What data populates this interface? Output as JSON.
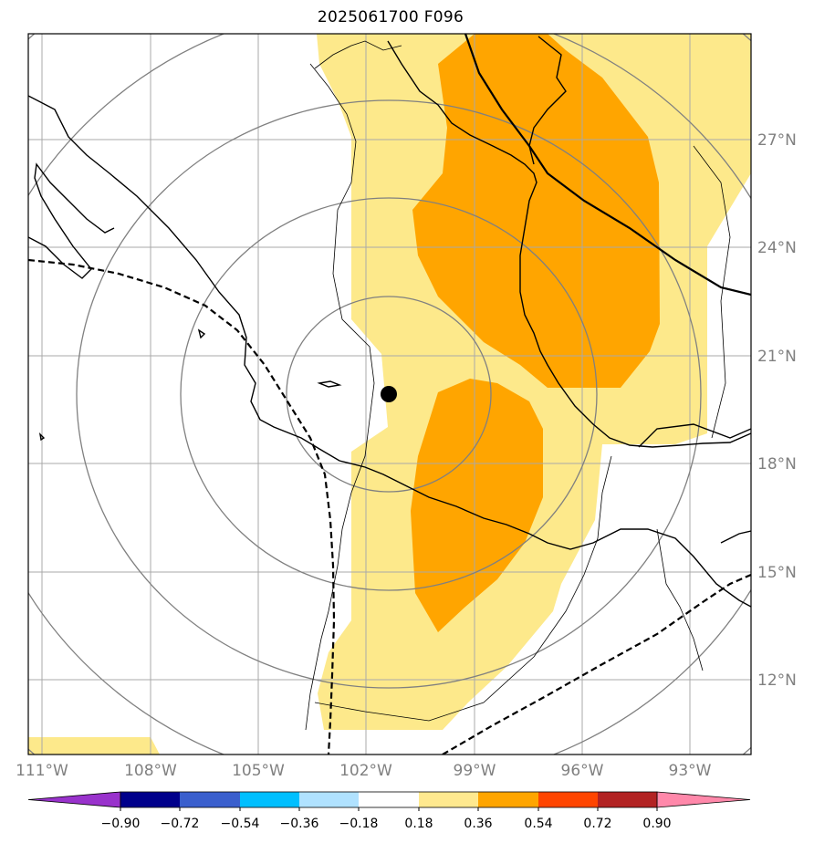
{
  "title": "2025061700 F096",
  "map": {
    "lon_range": [
      -111.3,
      -91.9
    ],
    "lat_range": [
      9.6,
      29.9
    ],
    "lon_ticks": [
      "111°W",
      "108°W",
      "105°W",
      "102°W",
      "99°W",
      "96°W",
      "93°W"
    ],
    "lat_ticks": [
      "12°N",
      "15°N",
      "18°N",
      "21°N",
      "24°N",
      "27°N"
    ],
    "gridline_color": "#a9a9a9",
    "tick_label_color": "#808080",
    "storm_center": {
      "lon": "101.3°W",
      "lat": "19.9°N",
      "marker": "black-dot"
    },
    "range_rings": {
      "count": 6,
      "color": "#808080",
      "center": "storm-center"
    },
    "track_lines": [
      {
        "style": "solid",
        "color": "#000000"
      },
      {
        "style": "dashed",
        "color": "#000000"
      },
      {
        "style": "dashed",
        "color": "#000000"
      }
    ]
  },
  "colorbar": {
    "ticks": [
      "−0.90",
      "−0.72",
      "−0.54",
      "−0.36",
      "−0.18",
      "0.18",
      "0.36",
      "0.54",
      "0.72",
      "0.90"
    ],
    "colors": [
      "#9932cc",
      "#00008b",
      "#3a5fcd",
      "#00bfff",
      "#b0e2ff",
      "#ffffff",
      "#ffe98f",
      "#ffa500",
      "#ff4500",
      "#b22222",
      "#ff88aa"
    ],
    "extend": "both"
  },
  "shading": {
    "light_color": "#fde98b",
    "dark_color": "#ffa500"
  }
}
